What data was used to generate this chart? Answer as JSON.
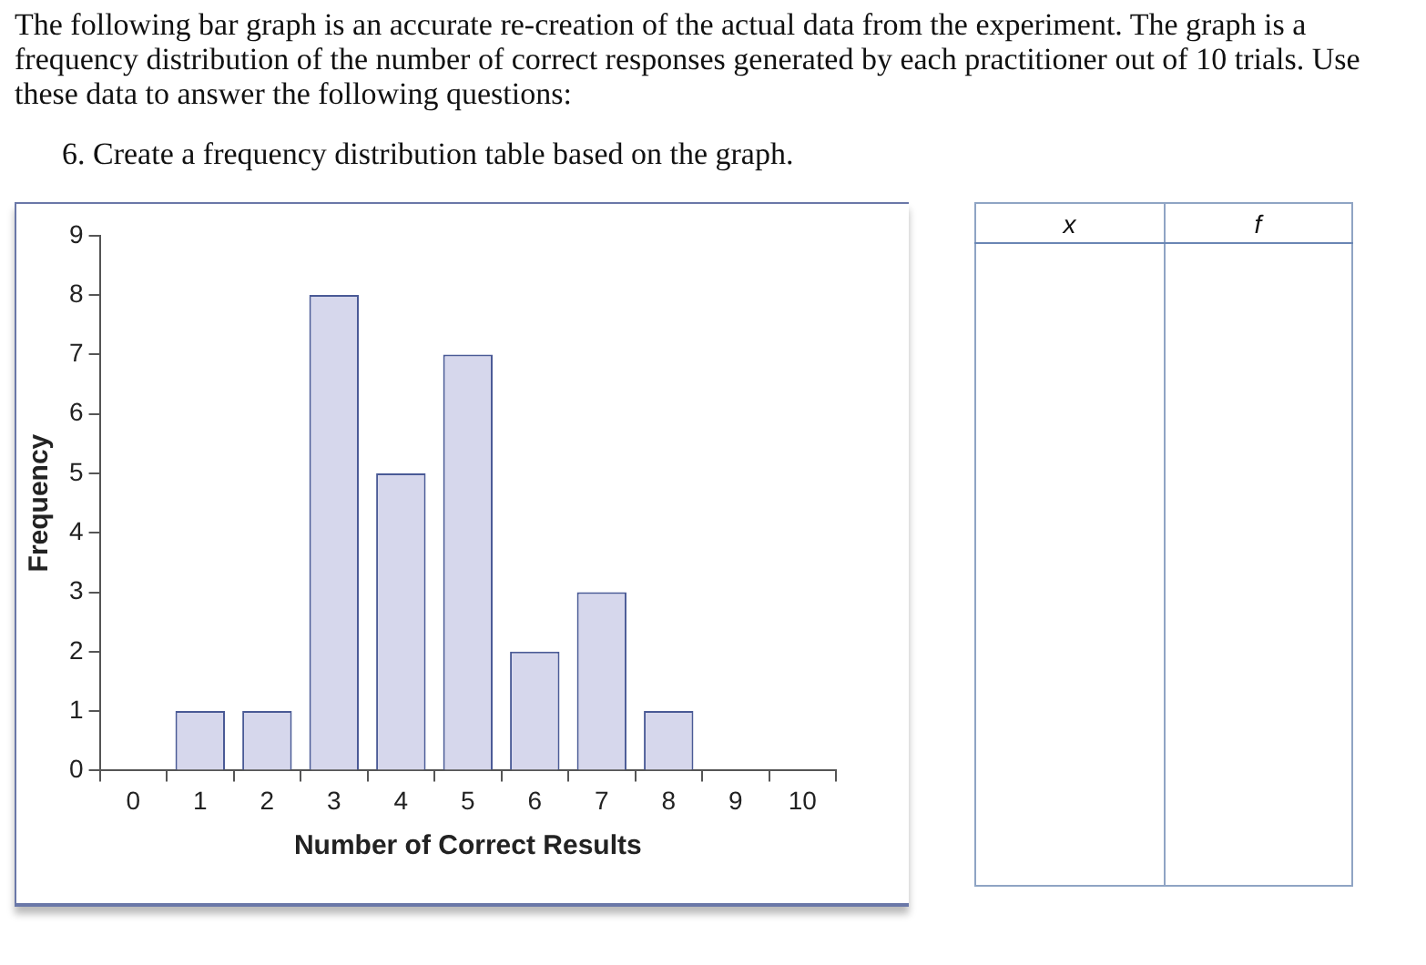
{
  "chart_data": {
    "type": "bar",
    "title": "The following bar graph is an accurate re-creation of the actual data from the experiment. The graph is a frequency distribution of the number of correct responses generated by each practitioner out of 10 trials. Use these data to answer the following questions:",
    "subtitle": "6. Create a frequency distribution table based on the graph.",
    "xlabel": "Number of Correct Results",
    "ylabel": "Frequency",
    "categories": [
      "0",
      "1",
      "2",
      "3",
      "4",
      "5",
      "6",
      "7",
      "8",
      "9",
      "10"
    ],
    "values": [
      0,
      1,
      1,
      8,
      5,
      7,
      2,
      3,
      1,
      0,
      0
    ],
    "color": "#d6d7ec",
    "ylim": [
      0,
      9
    ],
    "yticks": [
      0,
      1,
      2,
      3,
      4,
      5,
      6,
      7,
      8,
      9
    ],
    "grid": false,
    "annotations": [
      "x",
      "f"
    ]
  }
}
